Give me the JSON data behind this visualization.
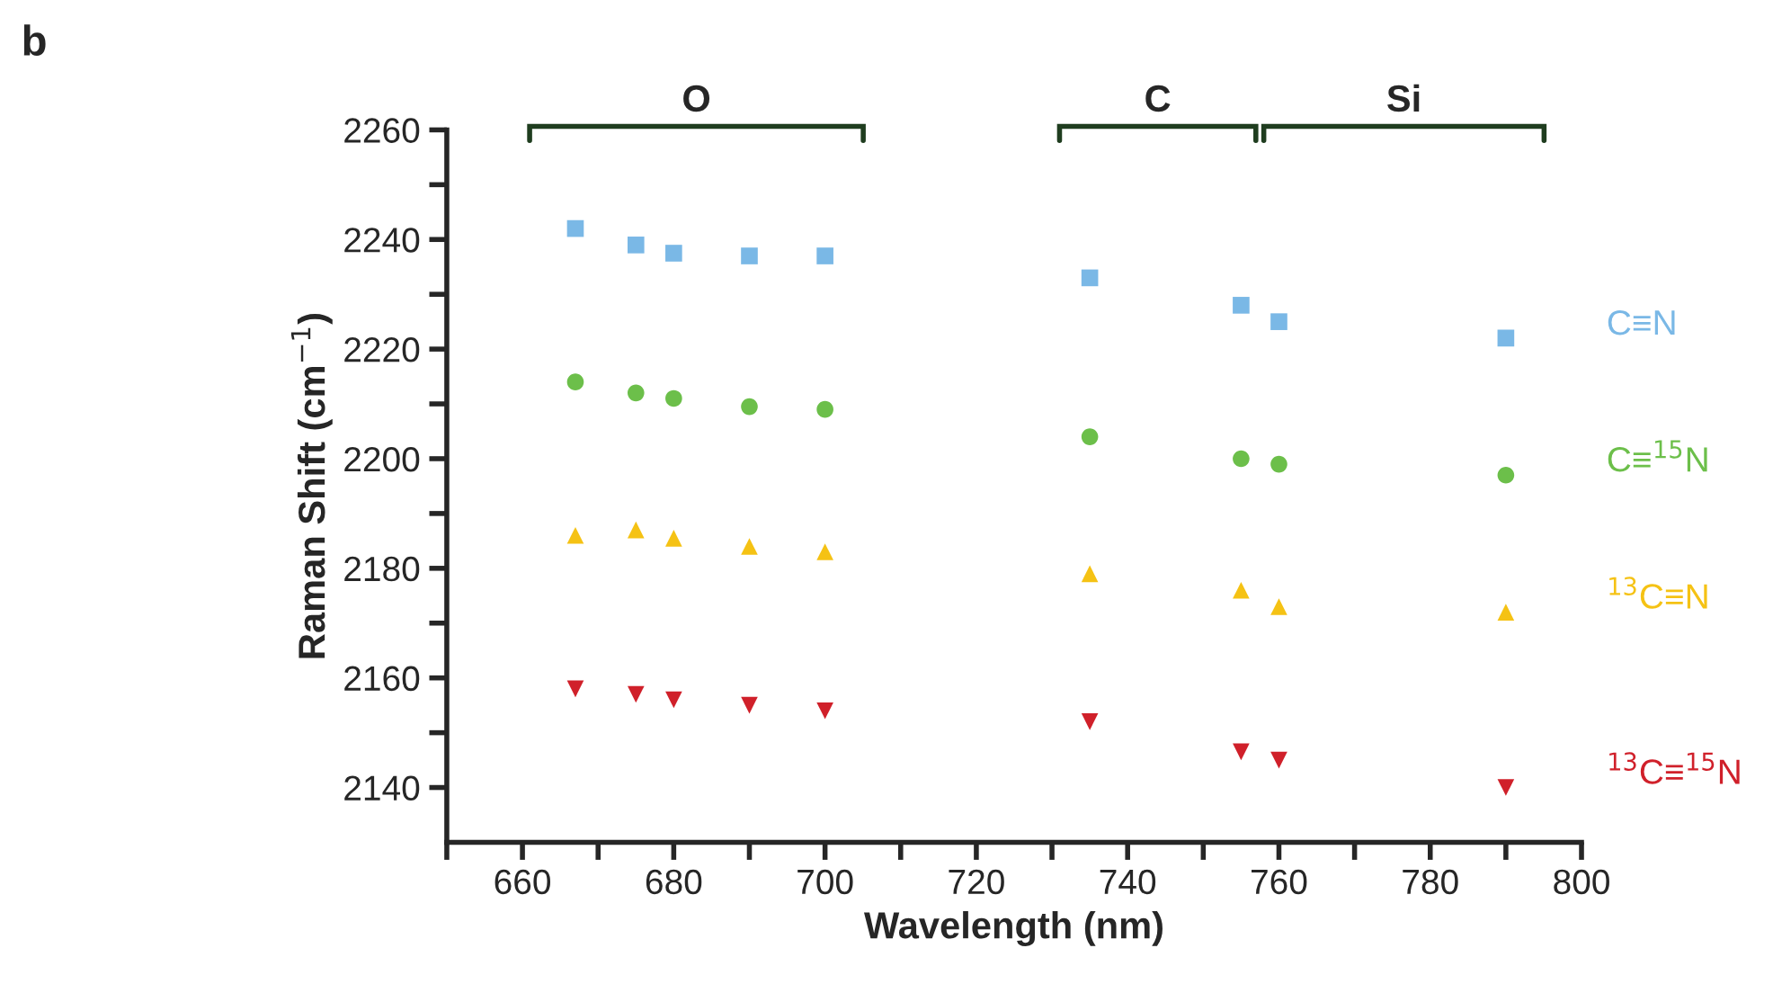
{
  "chart_data": {
    "type": "scatter",
    "xlabel": "Wavelength (nm)",
    "ylabel": "Raman Shift (cm$^{−1}$)",
    "annotations": [
      "b",
      "O",
      "C",
      "Si"
    ],
    "x": [
      667,
      675,
      680,
      690,
      700,
      735,
      755,
      760,
      790
    ],
    "series": [
      {
        "name": "C≡N",
        "color": "#7ab8e6",
        "marker": "square",
        "values": [
          2242,
          2239,
          2237.5,
          2237,
          2237,
          2233,
          2228,
          2225,
          2222
        ]
      },
      {
        "name": "C≡$^{15}$N",
        "color": "#6cbf4a",
        "marker": "circle",
        "values": [
          2214,
          2212,
          2211,
          2209.5,
          2209,
          2204,
          2200,
          2199,
          2197
        ]
      },
      {
        "name": "$^{13}$C≡N",
        "color": "#f5c214",
        "marker": "triangle",
        "values": [
          2186,
          2187,
          2185.5,
          2184,
          2183,
          2179,
          2176,
          2173,
          2172
        ]
      },
      {
        "name": "$^{13}$C≡$^{15}$N",
        "color": "#d0202a",
        "marker": "triangle-down",
        "values": [
          2158,
          2157,
          2156,
          2155,
          2154,
          2152,
          2146.5,
          2145,
          2140
        ]
      }
    ],
    "xlim": [
      650,
      800
    ],
    "xticks": [
      {
        "value": 650,
        "label": null
      },
      660,
      {
        "value": 670,
        "label": null
      },
      680,
      {
        "value": 690,
        "label": null
      },
      700,
      {
        "value": 710,
        "label": null
      },
      720,
      {
        "value": 730,
        "label": null
      },
      740,
      {
        "value": 750,
        "label": null
      },
      760,
      {
        "value": 770,
        "label": null
      },
      780,
      {
        "value": 790,
        "label": null
      },
      800
    ],
    "ylim": [
      2130,
      2260
    ],
    "yticks": [
      2140,
      {
        "value": 2150,
        "label": null
      },
      2160,
      {
        "value": 2170,
        "label": null
      },
      2180,
      {
        "value": 2190,
        "label": null
      },
      2200,
      {
        "value": 2210,
        "label": null
      },
      2220,
      {
        "value": 2230,
        "label": null
      },
      2240,
      {
        "value": 2250,
        "label": null
      },
      2260
    ],
    "grid": false,
    "legend": false
  }
}
